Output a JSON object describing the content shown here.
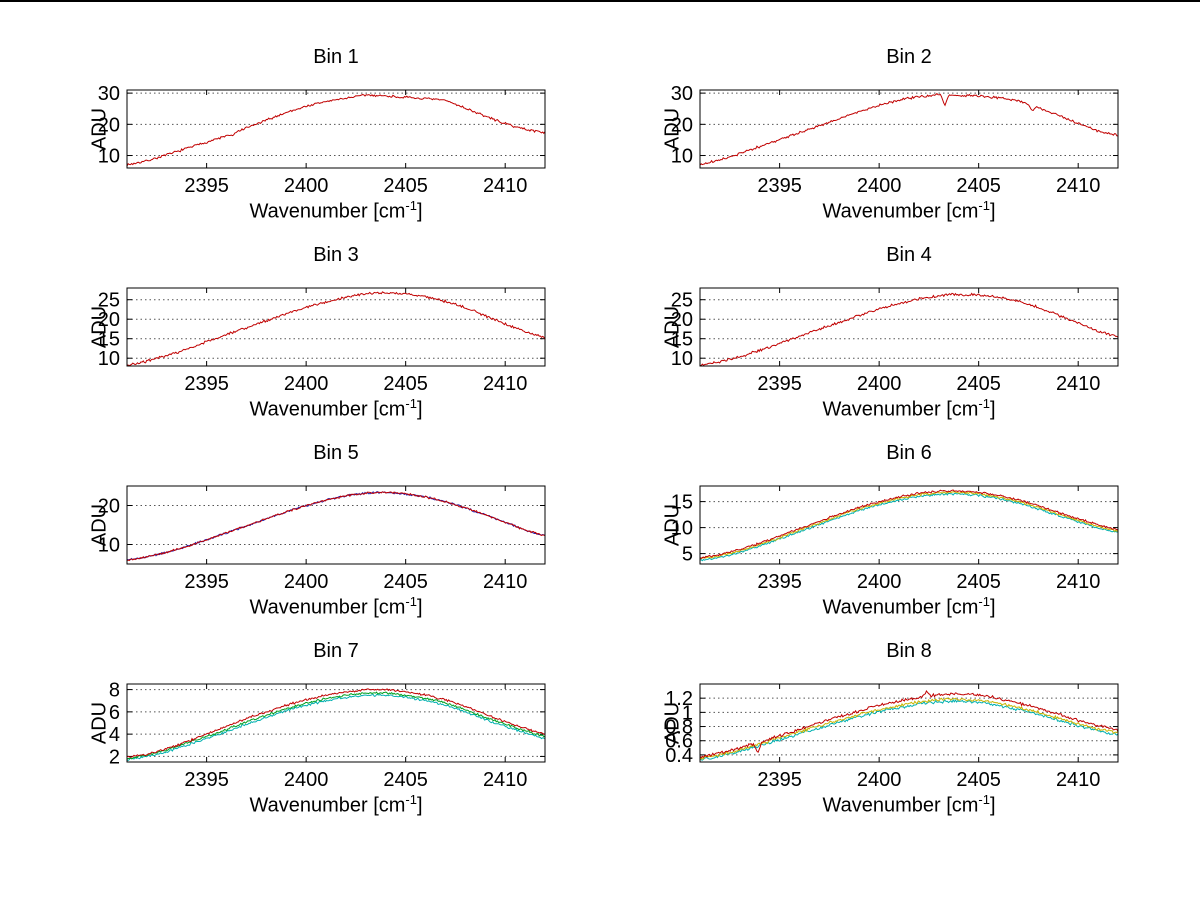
{
  "chart_data": {
    "type": "line",
    "ylabel": "ADU",
    "xlabel_prefix": "Wavenumber [cm",
    "xlabel_sup": "-1",
    "xlabel_suffix": "]",
    "xlim": [
      2391,
      2412
    ],
    "xticks": [
      2395,
      2400,
      2405,
      2410
    ],
    "envelope_x": [
      2391,
      2392,
      2393,
      2394,
      2395,
      2396,
      2397,
      2398,
      2399,
      2400,
      2401,
      2402,
      2403,
      2404,
      2405,
      2406,
      2407,
      2408,
      2409,
      2410,
      2411,
      2412
    ],
    "grid": "y-only, dotted",
    "legend": "none",
    "charts": [
      {
        "title": "Bin 1",
        "ylim": [
          6,
          31
        ],
        "yticks": [
          10,
          20,
          30
        ],
        "noise": 0.45,
        "series": [
          {
            "name": "spectrum",
            "color": "#c00000",
            "values": [
              7.0,
              8.3,
              10.2,
              12.3,
              14.3,
              16.3,
              18.8,
              21.3,
              23.8,
              25.8,
              27.3,
              28.4,
              29.4,
              29.1,
              28.6,
              28.2,
              27.7,
              25.2,
              22.6,
              20.2,
              18.4,
              17.4
            ],
            "spikes": [
              {
                "x": 2396.3,
                "dy": -0.9
              }
            ]
          }
        ]
      },
      {
        "title": "Bin 2",
        "ylim": [
          6,
          31
        ],
        "yticks": [
          10,
          20,
          30
        ],
        "noise": 0.45,
        "series": [
          {
            "name": "spectrum",
            "color": "#c00000",
            "values": [
              7.0,
              8.6,
              10.6,
              12.9,
              15.1,
              17.3,
              19.6,
              21.9,
              24.1,
              26.1,
              27.8,
              28.9,
              29.5,
              29.3,
              29.0,
              28.5,
              27.5,
              25.3,
              22.9,
              20.3,
              17.9,
              16.4
            ],
            "spikes": [
              {
                "x": 2403.3,
                "dy": -3.2
              },
              {
                "x": 2407.7,
                "dy": -1.5
              }
            ]
          }
        ]
      },
      {
        "title": "Bin 3",
        "ylim": [
          8,
          28
        ],
        "yticks": [
          10,
          15,
          20,
          25
        ],
        "noise": 0.4,
        "series": [
          {
            "name": "spectrum",
            "color": "#c00000",
            "values": [
              8.2,
              9.2,
              10.6,
              12.3,
              14.2,
              16.0,
              17.8,
              19.6,
              21.4,
              23.0,
              24.4,
              25.6,
              26.5,
              26.8,
              26.5,
              25.8,
              24.6,
              22.9,
              20.9,
              18.8,
              16.8,
              15.2
            ]
          }
        ]
      },
      {
        "title": "Bin 4",
        "ylim": [
          8,
          28
        ],
        "yticks": [
          10,
          15,
          20,
          25
        ],
        "noise": 0.4,
        "series": [
          {
            "name": "spectrum",
            "color": "#c00000",
            "values": [
              8.2,
              9.1,
              10.4,
              12.0,
              13.8,
              15.6,
              17.4,
              19.2,
              21.0,
              22.6,
              24.0,
              25.2,
              26.1,
              26.4,
              26.2,
              25.6,
              24.6,
              23.0,
              21.0,
              19.0,
              17.0,
              15.5
            ]
          }
        ]
      },
      {
        "title": "Bin 5",
        "ylim": [
          5,
          25
        ],
        "yticks": [
          10,
          20
        ],
        "noise": 0.3,
        "series": [
          {
            "name": "spectrum-b",
            "color": "#2020b0",
            "values": [
              6.0,
              6.8,
              8.0,
              9.5,
              11.2,
              13.0,
              14.8,
              16.6,
              18.4,
              20.0,
              21.4,
              22.5,
              23.2,
              23.4,
              23.0,
              22.2,
              21.0,
              19.4,
              17.6,
              15.7,
              13.7,
              12.2
            ]
          },
          {
            "name": "spectrum-r",
            "color": "#c00000",
            "values": [
              6.0,
              6.8,
              8.0,
              9.5,
              11.2,
              13.0,
              14.8,
              16.6,
              18.4,
              20.0,
              21.4,
              22.5,
              23.2,
              23.4,
              23.0,
              22.2,
              21.0,
              19.4,
              17.6,
              15.7,
              13.7,
              12.2
            ]
          }
        ]
      },
      {
        "title": "Bin 6",
        "ylim": [
          3,
          18
        ],
        "yticks": [
          5,
          10,
          15
        ],
        "noise": 0.25,
        "series": [
          {
            "name": "spectrum-c",
            "color": "#00b0b0",
            "values": [
              3.7,
              4.3,
              5.2,
              6.4,
              7.8,
              9.2,
              10.6,
              12.0,
              13.3,
              14.4,
              15.3,
              16.0,
              16.4,
              16.5,
              16.2,
              15.6,
              14.7,
              13.6,
              12.3,
              11.1,
              9.9,
              9.0
            ]
          },
          {
            "name": "spectrum-y",
            "color": "#c8b400",
            "values": [
              4.0,
              4.6,
              5.5,
              6.7,
              8.1,
              9.5,
              10.9,
              12.3,
              13.6,
              14.7,
              15.6,
              16.3,
              16.7,
              16.8,
              16.5,
              15.9,
              15.0,
              13.9,
              12.6,
              11.4,
              10.2,
              9.3
            ]
          },
          {
            "name": "spectrum-r",
            "color": "#c00000",
            "values": [
              4.2,
              4.8,
              5.8,
              7.0,
              8.4,
              9.8,
              11.2,
              12.6,
              13.9,
              15.0,
              15.9,
              16.6,
              17.0,
              17.1,
              16.8,
              16.2,
              15.3,
              14.2,
              12.9,
              11.7,
              10.5,
              9.6
            ]
          }
        ]
      },
      {
        "title": "Bin 7",
        "ylim": [
          1.5,
          8.5
        ],
        "yticks": [
          2,
          4,
          6,
          8
        ],
        "noise": 0.12,
        "series": [
          {
            "name": "spectrum-c",
            "color": "#00b0b0",
            "values": [
              1.7,
              2.0,
              2.4,
              3.0,
              3.6,
              4.2,
              4.9,
              5.5,
              6.1,
              6.6,
              7.0,
              7.3,
              7.5,
              7.5,
              7.3,
              7.0,
              6.6,
              6.0,
              5.3,
              4.7,
              4.1,
              3.6
            ]
          },
          {
            "name": "spectrum-g",
            "color": "#00a020",
            "values": [
              1.8,
              2.1,
              2.6,
              3.2,
              3.8,
              4.4,
              5.1,
              5.7,
              6.3,
              6.8,
              7.2,
              7.5,
              7.7,
              7.7,
              7.5,
              7.2,
              6.8,
              6.2,
              5.5,
              4.9,
              4.3,
              3.8
            ]
          },
          {
            "name": "spectrum-r",
            "color": "#c00000",
            "values": [
              1.9,
              2.2,
              2.7,
              3.3,
              4.0,
              4.7,
              5.4,
              6.0,
              6.6,
              7.1,
              7.5,
              7.8,
              8.0,
              8.0,
              7.8,
              7.5,
              7.1,
              6.5,
              5.8,
              5.1,
              4.5,
              4.0
            ]
          }
        ]
      },
      {
        "title": "Bin 8",
        "ylim": [
          0.3,
          1.4
        ],
        "yticks": [
          0.4,
          0.6,
          0.8,
          1,
          1.2
        ],
        "noise": 0.025,
        "series": [
          {
            "name": "spectrum-c",
            "color": "#00b0b0",
            "values": [
              0.33,
              0.38,
              0.45,
              0.53,
              0.61,
              0.7,
              0.78,
              0.86,
              0.94,
              1.01,
              1.07,
              1.12,
              1.15,
              1.16,
              1.14,
              1.1,
              1.04,
              0.97,
              0.89,
              0.81,
              0.74,
              0.68
            ]
          },
          {
            "name": "spectrum-y",
            "color": "#c8b400",
            "values": [
              0.35,
              0.4,
              0.47,
              0.55,
              0.64,
              0.73,
              0.81,
              0.89,
              0.97,
              1.04,
              1.1,
              1.15,
              1.18,
              1.19,
              1.17,
              1.13,
              1.07,
              1.0,
              0.92,
              0.84,
              0.77,
              0.71
            ]
          },
          {
            "name": "spectrum-r",
            "color": "#c00000",
            "values": [
              0.37,
              0.42,
              0.5,
              0.58,
              0.67,
              0.76,
              0.85,
              0.94,
              1.02,
              1.1,
              1.16,
              1.21,
              1.25,
              1.26,
              1.24,
              1.2,
              1.13,
              1.06,
              0.97,
              0.89,
              0.81,
              0.75
            ],
            "spikes": [
              {
                "x": 2393.9,
                "dy": -0.14
              },
              {
                "x": 2402.4,
                "dy": 0.07
              }
            ]
          }
        ]
      }
    ]
  }
}
